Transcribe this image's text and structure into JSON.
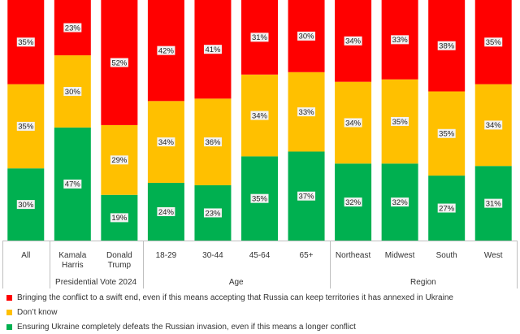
{
  "chart_data": {
    "type": "bar",
    "stacked": true,
    "percent": true,
    "categories": [
      "All",
      "Kamala Harris",
      "Donald Trump",
      "18-29",
      "30-44",
      "45-64",
      "65+",
      "Northeast",
      "Midwest",
      "South",
      "West"
    ],
    "category_lines": [
      [
        "All"
      ],
      [
        "Kamala",
        "Harris"
      ],
      [
        "Donald",
        "Trump"
      ],
      [
        "18-29"
      ],
      [
        "30-44"
      ],
      [
        "45-64"
      ],
      [
        "65+"
      ],
      [
        "Northeast"
      ],
      [
        "Midwest"
      ],
      [
        "South"
      ],
      [
        "West"
      ]
    ],
    "groups": [
      {
        "name": "",
        "start": 0,
        "end": 0
      },
      {
        "name": "Presidential Vote 2024",
        "start": 1,
        "end": 2
      },
      {
        "name": "Age",
        "start": 3,
        "end": 6
      },
      {
        "name": "Region",
        "start": 7,
        "end": 10
      }
    ],
    "series": [
      {
        "name": "Ensuring Ukraine completely defeats the Russian invasion, even if this means a longer conflict",
        "color": "#00b050",
        "values": [
          30,
          47,
          19,
          24,
          23,
          35,
          37,
          32,
          32,
          27,
          31
        ],
        "labels": [
          "30%",
          "47%",
          "19%",
          "24%",
          "23%",
          "35%",
          "37%",
          "32%",
          "32%",
          "27%",
          "31%"
        ]
      },
      {
        "name": "Don’t know",
        "color": "#ffc000",
        "values": [
          35,
          30,
          29,
          34,
          36,
          34,
          33,
          34,
          35,
          35,
          34
        ],
        "labels": [
          "35%",
          "30%",
          "29%",
          "34%",
          "36%",
          "34%",
          "33%",
          "34%",
          "35%",
          "35%",
          "34%"
        ]
      },
      {
        "name": "Bringing the conflict to a swift end, even if this means accepting that Russia can keep territories it has annexed in Ukraine",
        "color": "#ff0000",
        "values": [
          35,
          23,
          52,
          42,
          41,
          31,
          30,
          34,
          33,
          38,
          35
        ],
        "labels": [
          "35%",
          "23%",
          "52%",
          "42%",
          "41%",
          "31%",
          "30%",
          "34%",
          "33%",
          "38%",
          "35%"
        ]
      }
    ],
    "legend_order": [
      2,
      1,
      0
    ],
    "legend_position": "bottom",
    "ylim": [
      0,
      100
    ]
  }
}
